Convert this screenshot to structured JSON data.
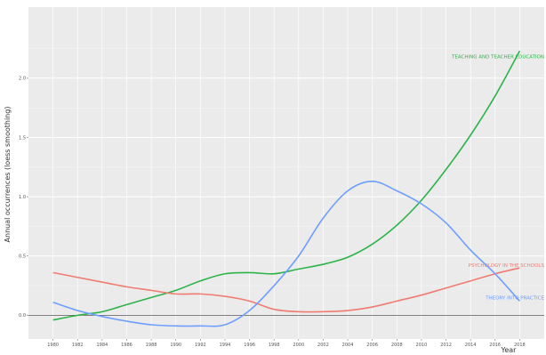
{
  "chart_data": {
    "type": "line",
    "title": "",
    "xlabel": "Year",
    "ylabel": "Annual occurrences (loess smoothing)",
    "xlim": [
      1978,
      2020
    ],
    "ylim": [
      -0.2,
      2.6
    ],
    "x_ticks": [
      1980,
      1982,
      1984,
      1986,
      1988,
      1990,
      1992,
      1994,
      1996,
      1998,
      2000,
      2002,
      2004,
      2006,
      2008,
      2010,
      2012,
      2014,
      2016,
      2018
    ],
    "x_tick_labels": [
      "1980",
      "1982",
      "1984",
      "1986",
      "1988",
      "1990",
      "1992",
      "1994",
      "1996",
      "1998",
      "2000",
      "2002",
      "2004",
      "2006",
      "2008",
      "2010",
      "2012",
      "2014",
      "2016",
      "2018"
    ],
    "y_ticks": [
      0.0,
      0.5,
      1.0,
      1.5,
      2.0
    ],
    "y_tick_labels": [
      "0.0",
      "0.5",
      "1.0",
      "1.5",
      "2.0"
    ],
    "grid": true,
    "legend": "none (direct labels at line ends)",
    "background": "#ebebeb",
    "x": [
      1980,
      1982,
      1984,
      1986,
      1988,
      1990,
      1992,
      1994,
      1996,
      1998,
      2000,
      2002,
      2004,
      2006,
      2008,
      2010,
      2012,
      2014,
      2016,
      2018
    ],
    "series": [
      {
        "name": "TEACHING AND TEACHER EDUCATION",
        "color": "#2db34a",
        "values": [
          -0.04,
          0.0,
          0.03,
          0.09,
          0.15,
          0.21,
          0.29,
          0.35,
          0.36,
          0.35,
          0.39,
          0.43,
          0.49,
          0.6,
          0.76,
          0.97,
          1.23,
          1.52,
          1.85,
          2.23
        ]
      },
      {
        "name": "PSYCHOLOGY IN THE SCHOOLS",
        "color": "#f07b72",
        "values": [
          0.36,
          0.32,
          0.28,
          0.24,
          0.21,
          0.18,
          0.18,
          0.16,
          0.12,
          0.05,
          0.03,
          0.03,
          0.04,
          0.07,
          0.12,
          0.17,
          0.23,
          0.29,
          0.35,
          0.4
        ]
      },
      {
        "name": "THEORY INTO PRACTICE",
        "color": "#6e9eff",
        "values": [
          0.11,
          0.04,
          -0.01,
          -0.05,
          -0.08,
          -0.09,
          -0.09,
          -0.08,
          0.04,
          0.25,
          0.5,
          0.82,
          1.05,
          1.13,
          1.05,
          0.94,
          0.78,
          0.55,
          0.35,
          0.12
        ]
      }
    ]
  }
}
